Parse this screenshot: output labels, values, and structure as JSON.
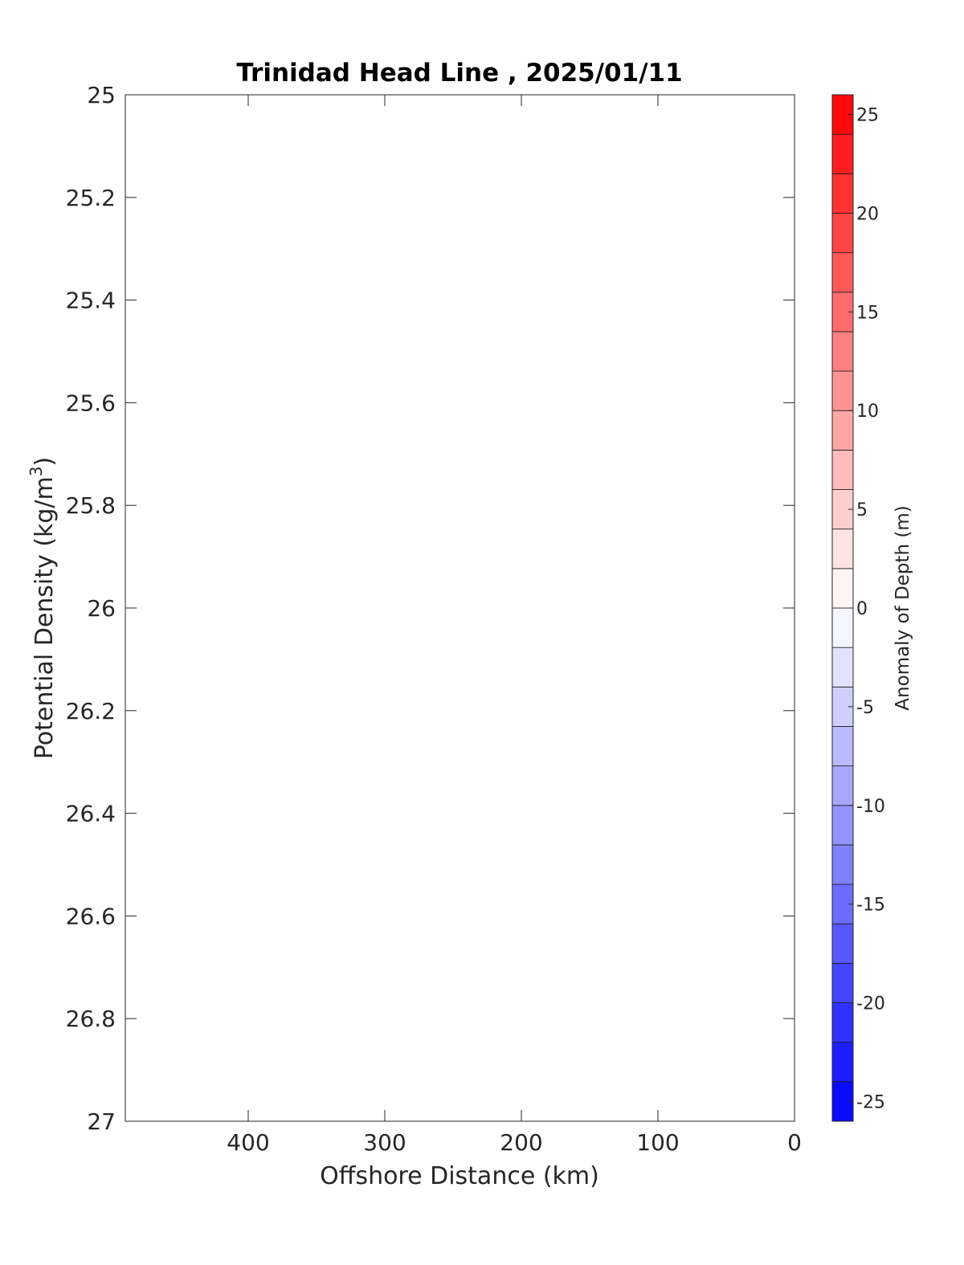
{
  "chart_data": {
    "type": "heatmap",
    "title": "Trinidad Head Line , 2025/01/11",
    "xlabel": "Offshore Distance (km)",
    "ylabel": {
      "base": "Potential Density (kg/m",
      "sup": "3",
      "close": ")"
    },
    "xlim": [
      490,
      0
    ],
    "x_reversed": true,
    "x_ticks": [
      400,
      300,
      200,
      100,
      0
    ],
    "x_tick_labels": [
      "400",
      "300",
      "200",
      "100",
      "0"
    ],
    "ylim": [
      25,
      27
    ],
    "y_reversed": true,
    "y_ticks": [
      25,
      25.2,
      25.4,
      25.6,
      25.8,
      26,
      26.2,
      26.4,
      26.6,
      26.8,
      27
    ],
    "y_tick_labels": [
      "25",
      "25.2",
      "25.4",
      "25.6",
      "25.8",
      "26",
      "26.2",
      "26.4",
      "26.6",
      "26.8",
      "27"
    ],
    "values": [],
    "colorbar": {
      "label": "Anomaly of Depth (m)",
      "range": [
        -26,
        26
      ],
      "step": 2,
      "ticks": [
        25,
        20,
        15,
        10,
        5,
        0,
        -5,
        -10,
        -15,
        -20,
        -25
      ],
      "tick_labels": [
        "25",
        "20",
        "15",
        "10",
        "5",
        "0",
        "-5",
        "-10",
        "-15",
        "-20",
        "-25"
      ],
      "colormap": {
        "low": "#0000ff",
        "mid": "#ffffff",
        "high": "#ff0000"
      }
    }
  }
}
